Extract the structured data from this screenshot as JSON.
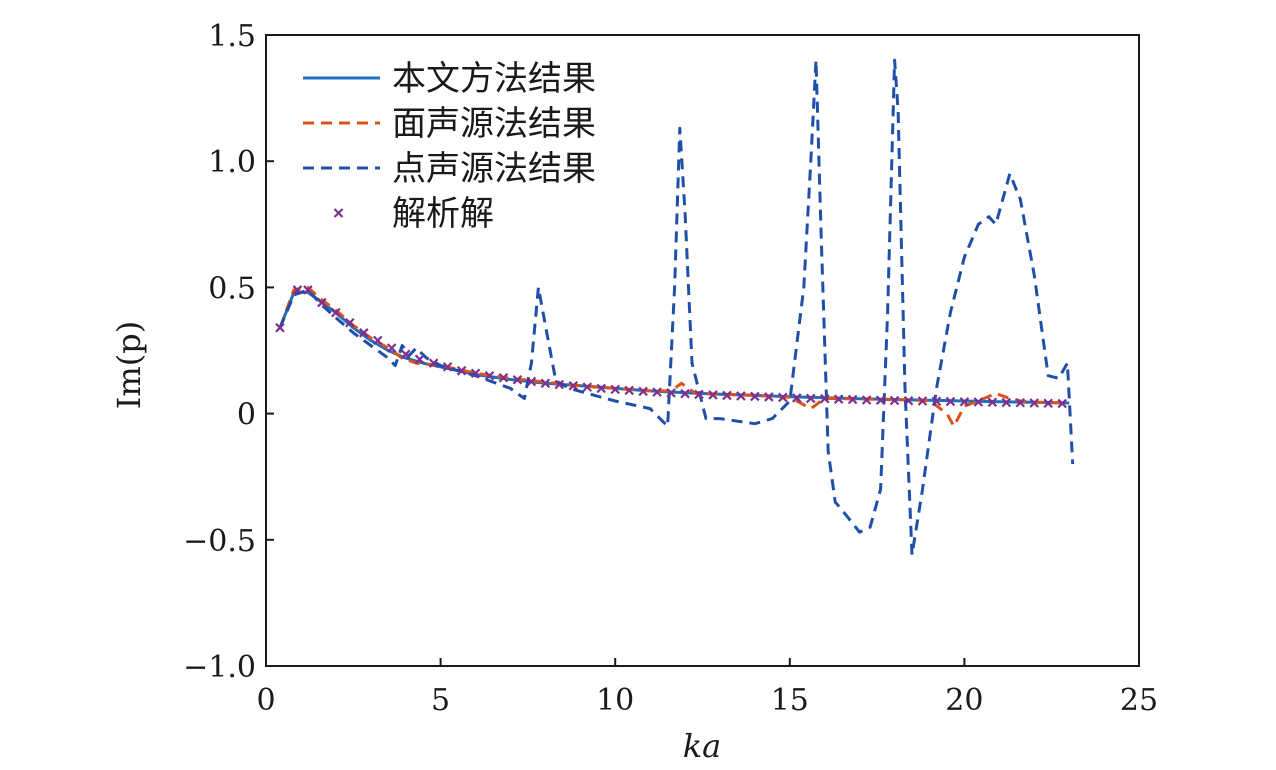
{
  "chart_data": {
    "type": "line",
    "title": "",
    "xlabel": "ka",
    "ylabel": "Im(p)",
    "xlim": [
      0,
      25
    ],
    "ylim": [
      -1.0,
      1.5
    ],
    "xticks": [
      0,
      5,
      10,
      15,
      20,
      25
    ],
    "xtick_labels": [
      "0",
      "5",
      "10",
      "15",
      "20",
      "25"
    ],
    "yticks": [
      -1.0,
      -0.5,
      0,
      0.5,
      1.0,
      1.5
    ],
    "ytick_labels": [
      "−1.0",
      "−0.5",
      "0",
      "0.5",
      "1.0",
      "1.5"
    ],
    "grid": false,
    "legend_position": "top-left",
    "series": [
      {
        "name": "本文方法结果",
        "style": "solid",
        "color": "#1f6fbf",
        "x": [
          0.4,
          0.8,
          1.2,
          1.6,
          2.0,
          2.5,
          3.0,
          3.5,
          4.0,
          4.5,
          5.0,
          5.5,
          6.0,
          7.0,
          8.0,
          9.0,
          10.0,
          11.0,
          12.0,
          13.0,
          14.0,
          15.0,
          16.0,
          17.0,
          18.0,
          19.0,
          20.0,
          21.0,
          22.0,
          23.0
        ],
        "y": [
          0.34,
          0.48,
          0.48,
          0.44,
          0.4,
          0.34,
          0.29,
          0.25,
          0.22,
          0.2,
          0.185,
          0.17,
          0.155,
          0.135,
          0.12,
          0.11,
          0.1,
          0.09,
          0.083,
          0.077,
          0.072,
          0.067,
          0.063,
          0.059,
          0.056,
          0.053,
          0.05,
          0.047,
          0.045,
          0.042
        ]
      },
      {
        "name": "面声源法结果",
        "style": "dashed",
        "color": "#d95319",
        "x": [
          0.4,
          0.8,
          1.2,
          1.6,
          2.0,
          2.5,
          3.0,
          3.5,
          3.9,
          4.3,
          5.0,
          6.0,
          7.0,
          8.0,
          9.0,
          10.0,
          11.0,
          11.6,
          11.9,
          12.3,
          13.0,
          14.0,
          15.0,
          15.6,
          16.0,
          17.0,
          18.0,
          19.0,
          19.5,
          19.7,
          20.0,
          20.4,
          20.9,
          21.3,
          21.6,
          22.0,
          23.0
        ],
        "y": [
          0.34,
          0.49,
          0.5,
          0.45,
          0.41,
          0.35,
          0.3,
          0.26,
          0.22,
          0.2,
          0.19,
          0.16,
          0.14,
          0.125,
          0.11,
          0.1,
          0.09,
          0.09,
          0.12,
          0.08,
          0.077,
          0.072,
          0.065,
          0.02,
          0.06,
          0.058,
          0.055,
          0.052,
          0.0,
          -0.05,
          0.03,
          0.05,
          0.08,
          0.06,
          0.05,
          0.045,
          0.042
        ]
      },
      {
        "name": "点声源法结果",
        "style": "dashed",
        "color": "#1f4fa8",
        "x": [
          0.4,
          0.8,
          1.2,
          1.6,
          2.0,
          2.5,
          3.0,
          3.5,
          3.7,
          3.9,
          4.1,
          4.3,
          4.6,
          5.0,
          6.0,
          7.0,
          7.4,
          7.6,
          7.8,
          8.0,
          8.3,
          8.7,
          9.2,
          10.0,
          11.0,
          11.5,
          11.7,
          11.85,
          12.0,
          12.2,
          12.6,
          13.0,
          13.5,
          14.0,
          14.5,
          15.0,
          15.4,
          15.6,
          15.75,
          15.9,
          16.1,
          16.3,
          16.6,
          17.0,
          17.3,
          17.6,
          17.8,
          18.0,
          18.1,
          18.3,
          18.5,
          18.8,
          19.2,
          19.6,
          20.0,
          20.4,
          20.7,
          20.9,
          21.1,
          21.3,
          21.6,
          22.0,
          22.4,
          22.7,
          22.95,
          23.1
        ],
        "y": [
          0.34,
          0.47,
          0.49,
          0.43,
          0.38,
          0.32,
          0.27,
          0.22,
          0.19,
          0.27,
          0.23,
          0.26,
          0.22,
          0.19,
          0.15,
          0.1,
          0.06,
          0.2,
          0.5,
          0.35,
          0.13,
          0.1,
          0.08,
          0.05,
          0.02,
          -0.05,
          0.5,
          1.13,
          0.8,
          0.2,
          -0.02,
          -0.02,
          -0.03,
          -0.04,
          -0.02,
          0.05,
          0.5,
          1.0,
          1.4,
          0.7,
          -0.15,
          -0.35,
          -0.4,
          -0.47,
          -0.45,
          -0.3,
          0.4,
          1.4,
          1.2,
          0.1,
          -0.56,
          -0.3,
          0.1,
          0.4,
          0.62,
          0.75,
          0.78,
          0.75,
          0.85,
          0.95,
          0.85,
          0.55,
          0.15,
          0.14,
          0.2,
          -0.2
        ]
      },
      {
        "name": "解析解",
        "style": "markers",
        "marker": "x",
        "color": "#7e2f8e",
        "x": [
          0.4,
          0.9,
          1.2,
          1.6,
          2.0,
          2.4,
          2.8,
          3.2,
          3.6,
          4.0,
          4.4,
          4.8,
          5.2,
          5.6,
          6.0,
          6.4,
          6.8,
          7.2,
          7.6,
          8.0,
          8.4,
          8.8,
          9.2,
          9.6,
          10.0,
          10.4,
          10.8,
          11.2,
          11.6,
          12.0,
          12.4,
          12.8,
          13.2,
          13.6,
          14.0,
          14.4,
          14.8,
          15.2,
          15.6,
          16.0,
          16.4,
          16.8,
          17.2,
          17.6,
          18.0,
          18.4,
          18.8,
          19.2,
          19.6,
          20.0,
          20.4,
          20.8,
          21.2,
          21.6,
          22.0,
          22.4,
          22.8
        ],
        "y": [
          0.34,
          0.49,
          0.49,
          0.44,
          0.4,
          0.36,
          0.32,
          0.29,
          0.26,
          0.235,
          0.215,
          0.2,
          0.185,
          0.17,
          0.16,
          0.15,
          0.142,
          0.134,
          0.127,
          0.12,
          0.115,
          0.11,
          0.105,
          0.1,
          0.096,
          0.092,
          0.088,
          0.085,
          0.082,
          0.079,
          0.076,
          0.074,
          0.072,
          0.07,
          0.068,
          0.066,
          0.064,
          0.062,
          0.06,
          0.059,
          0.057,
          0.056,
          0.054,
          0.053,
          0.052,
          0.051,
          0.05,
          0.049,
          0.048,
          0.047,
          0.046,
          0.045,
          0.044,
          0.043,
          0.042,
          0.041,
          0.04
        ]
      }
    ]
  }
}
